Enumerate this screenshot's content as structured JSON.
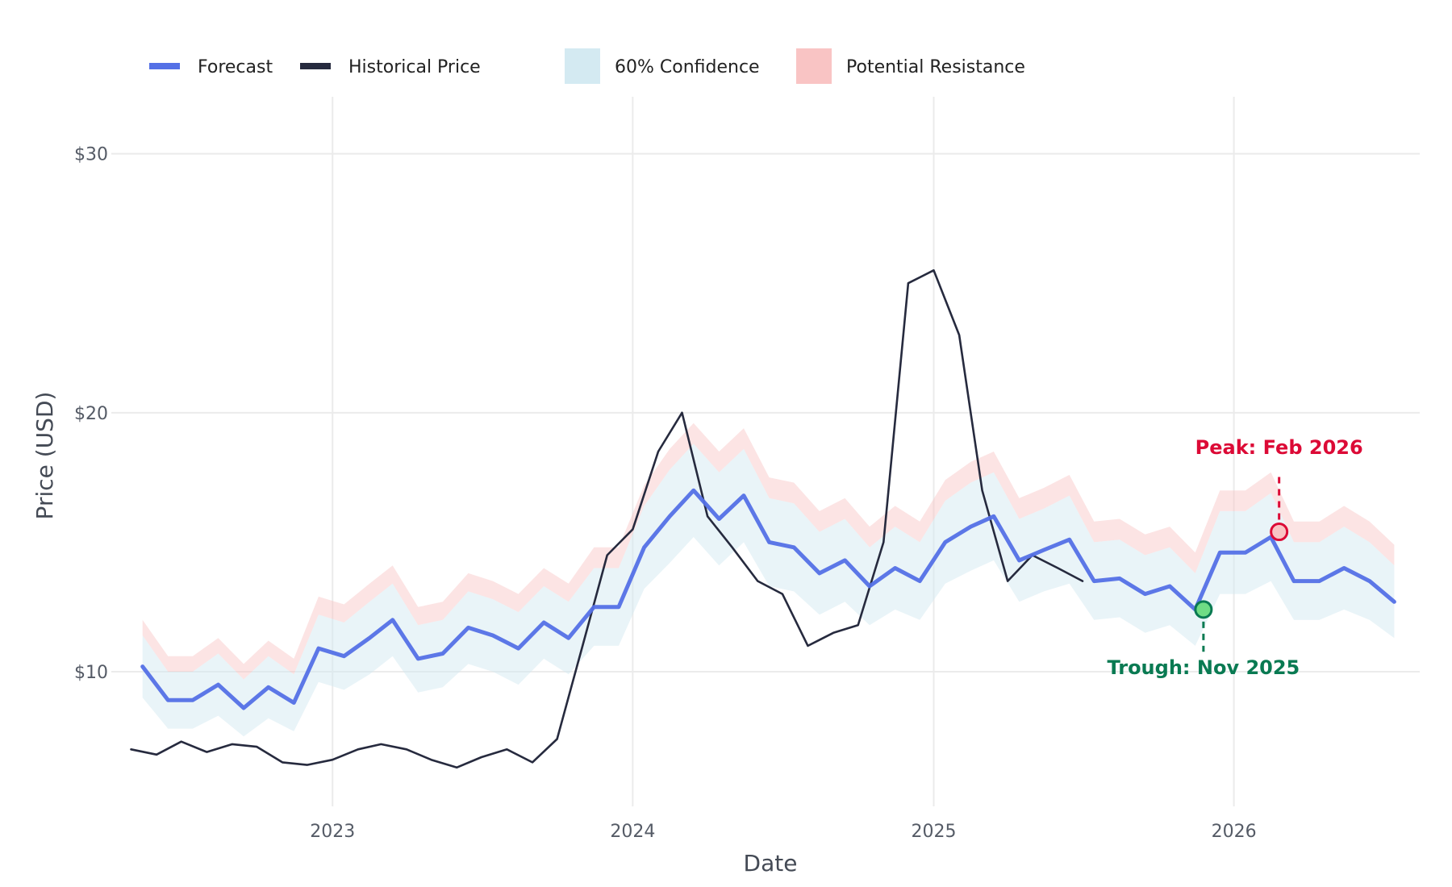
{
  "colors": {
    "forecast": "#5470e6",
    "historical": "#262a3e",
    "confidence": "#d4eaf2",
    "resistance": "#f9c4c4",
    "grid": "#ebebeb",
    "peak": "#dc0a36",
    "trough": "#097a52",
    "trough_fill": "#6fdc85"
  },
  "chart_data": {
    "type": "line",
    "xlabel": "Date",
    "ylabel": "Price (USD)",
    "xlim": [
      "2022-04-07",
      "2026-08-15"
    ],
    "ylim": [
      4.8,
      32.2
    ],
    "x_ticks": [
      {
        "date": "2023-01-01",
        "label": "2023"
      },
      {
        "date": "2024-01-01",
        "label": "2024"
      },
      {
        "date": "2025-01-01",
        "label": "2025"
      },
      {
        "date": "2026-01-01",
        "label": "2026"
      }
    ],
    "y_ticks": [
      {
        "value": 10,
        "label": "$10"
      },
      {
        "value": 20,
        "label": "$20"
      },
      {
        "value": 30,
        "label": "$30"
      }
    ],
    "grid": true,
    "legend": {
      "placement": "top-left",
      "items": [
        {
          "label": "Forecast",
          "kind": "line",
          "color": "#5470e6"
        },
        {
          "label": "Historical Price",
          "kind": "line",
          "color": "#262a3e"
        },
        {
          "label": "60% Confidence",
          "kind": "band",
          "color": "#d4eaf2"
        },
        {
          "label": "Potential Resistance",
          "kind": "band",
          "color": "#f9c4c4"
        }
      ]
    },
    "series": [
      {
        "name": "Historical Price",
        "x": [
          "2022-05-01",
          "2022-06-01",
          "2022-07-01",
          "2022-08-01",
          "2022-09-01",
          "2022-10-01",
          "2022-11-01",
          "2022-12-01",
          "2023-01-01",
          "2023-02-01",
          "2023-03-01",
          "2023-04-01",
          "2023-05-01",
          "2023-06-01",
          "2023-07-01",
          "2023-08-01",
          "2023-09-01",
          "2023-10-01",
          "2023-11-01",
          "2023-12-01",
          "2024-01-01",
          "2024-02-01",
          "2024-03-01",
          "2024-04-01",
          "2024-05-01",
          "2024-06-01",
          "2024-07-01",
          "2024-08-01",
          "2024-09-01",
          "2024-10-01",
          "2024-11-01",
          "2024-12-01",
          "2025-01-01",
          "2025-02-01",
          "2025-03-01",
          "2025-04-01",
          "2025-05-01",
          "2025-06-01",
          "2025-07-01"
        ],
        "y": [
          7.0,
          6.8,
          7.3,
          6.9,
          7.2,
          7.1,
          6.5,
          6.4,
          6.6,
          7.0,
          7.2,
          7.0,
          6.6,
          6.3,
          6.7,
          7.0,
          6.5,
          7.4,
          11.0,
          14.5,
          15.5,
          18.5,
          20.0,
          16.0,
          14.8,
          13.5,
          13.0,
          11.0,
          11.5,
          11.8,
          15.0,
          25.0,
          25.5,
          23.0,
          17.0,
          13.5,
          14.5,
          14.0,
          13.5
        ]
      },
      {
        "name": "Forecast",
        "x": [
          "2022-05-15",
          "2022-06-15",
          "2022-07-15",
          "2022-08-15",
          "2022-09-15",
          "2022-10-15",
          "2022-11-15",
          "2022-12-15",
          "2023-01-15",
          "2023-02-15",
          "2023-03-15",
          "2023-04-15",
          "2023-05-15",
          "2023-06-15",
          "2023-07-15",
          "2023-08-15",
          "2023-09-15",
          "2023-10-15",
          "2023-11-15",
          "2023-12-15",
          "2024-01-15",
          "2024-02-15",
          "2024-03-15",
          "2024-04-15",
          "2024-05-15",
          "2024-06-15",
          "2024-07-15",
          "2024-08-15",
          "2024-09-15",
          "2024-10-15",
          "2024-11-15",
          "2024-12-15",
          "2025-01-15",
          "2025-02-15",
          "2025-03-15",
          "2025-04-15",
          "2025-05-15",
          "2025-06-15",
          "2025-07-15",
          "2025-08-15",
          "2025-09-15",
          "2025-10-15",
          "2025-11-15",
          "2025-12-15",
          "2026-01-15",
          "2026-02-15",
          "2026-03-15",
          "2026-04-15",
          "2026-05-15",
          "2026-06-15",
          "2026-07-15"
        ],
        "y": [
          10.2,
          8.9,
          8.9,
          9.5,
          8.6,
          9.4,
          8.8,
          10.9,
          10.6,
          11.3,
          12.0,
          10.5,
          10.7,
          11.7,
          11.4,
          10.9,
          11.9,
          11.3,
          12.5,
          12.5,
          14.8,
          16.0,
          17.0,
          15.9,
          16.8,
          15.0,
          14.8,
          13.8,
          14.3,
          13.3,
          14.0,
          13.5,
          15.0,
          15.6,
          16.0,
          14.3,
          14.7,
          15.1,
          13.5,
          13.6,
          13.0,
          13.3,
          12.4,
          14.6,
          14.6,
          15.2,
          13.5,
          13.5,
          14.0,
          13.5,
          12.7
        ]
      }
    ],
    "confidence_band": {
      "label": "60% Confidence",
      "x": [
        "2022-05-15",
        "2022-06-15",
        "2022-07-15",
        "2022-08-15",
        "2022-09-15",
        "2022-10-15",
        "2022-11-15",
        "2022-12-15",
        "2023-01-15",
        "2023-02-15",
        "2023-03-15",
        "2023-04-15",
        "2023-05-15",
        "2023-06-15",
        "2023-07-15",
        "2023-08-15",
        "2023-09-15",
        "2023-10-15",
        "2023-11-15",
        "2023-12-15",
        "2024-01-15",
        "2024-02-15",
        "2024-03-15",
        "2024-04-15",
        "2024-05-15",
        "2024-06-15",
        "2024-07-15",
        "2024-08-15",
        "2024-09-15",
        "2024-10-15",
        "2024-11-15",
        "2024-12-15",
        "2025-01-15",
        "2025-02-15",
        "2025-03-15",
        "2025-04-15",
        "2025-05-15",
        "2025-06-15",
        "2025-07-15",
        "2025-08-15",
        "2025-09-15",
        "2025-10-15",
        "2025-11-15",
        "2025-12-15",
        "2026-01-15",
        "2026-02-15",
        "2026-03-15",
        "2026-04-15",
        "2026-05-15",
        "2026-06-15",
        "2026-07-15"
      ],
      "lower": [
        9.0,
        7.8,
        7.8,
        8.3,
        7.5,
        8.2,
        7.7,
        9.6,
        9.3,
        9.9,
        10.6,
        9.2,
        9.4,
        10.3,
        10.0,
        9.5,
        10.5,
        9.9,
        11.0,
        11.0,
        13.2,
        14.2,
        15.2,
        14.1,
        15.0,
        13.3,
        13.1,
        12.2,
        12.7,
        11.8,
        12.4,
        12.0,
        13.4,
        13.9,
        14.3,
        12.7,
        13.1,
        13.4,
        12.0,
        12.1,
        11.5,
        11.8,
        11.0,
        13.0,
        13.0,
        13.5,
        12.0,
        12.0,
        12.4,
        12.0,
        11.3
      ],
      "upper": [
        11.4,
        10.0,
        10.0,
        10.7,
        9.7,
        10.6,
        9.9,
        12.2,
        11.9,
        12.7,
        13.4,
        11.8,
        12.0,
        13.1,
        12.8,
        12.3,
        13.3,
        12.7,
        14.0,
        14.0,
        16.4,
        17.8,
        18.8,
        17.7,
        18.6,
        16.7,
        16.5,
        15.4,
        15.9,
        14.8,
        15.6,
        15.0,
        16.6,
        17.3,
        17.7,
        15.9,
        16.3,
        16.8,
        15.0,
        15.1,
        14.5,
        14.8,
        13.8,
        16.2,
        16.2,
        16.9,
        15.0,
        15.0,
        15.6,
        15.0,
        14.1
      ]
    },
    "resistance_band": {
      "label": "Potential Resistance",
      "x": [
        "2022-05-15",
        "2022-06-15",
        "2022-07-15",
        "2022-08-15",
        "2022-09-15",
        "2022-10-15",
        "2022-11-15",
        "2022-12-15",
        "2023-01-15",
        "2023-02-15",
        "2023-03-15",
        "2023-04-15",
        "2023-05-15",
        "2023-06-15",
        "2023-07-15",
        "2023-08-15",
        "2023-09-15",
        "2023-10-15",
        "2023-11-15",
        "2023-12-15",
        "2024-01-15",
        "2024-02-15",
        "2024-03-15",
        "2024-04-15",
        "2024-05-15",
        "2024-06-15",
        "2024-07-15",
        "2024-08-15",
        "2024-09-15",
        "2024-10-15",
        "2024-11-15",
        "2024-12-15",
        "2025-01-15",
        "2025-02-15",
        "2025-03-15",
        "2025-04-15",
        "2025-05-15",
        "2025-06-15",
        "2025-07-15",
        "2025-08-15",
        "2025-09-15",
        "2025-10-15",
        "2025-11-15",
        "2025-12-15",
        "2026-01-15",
        "2026-02-15",
        "2026-03-15",
        "2026-04-15",
        "2026-05-15",
        "2026-06-15",
        "2026-07-15"
      ],
      "upper": [
        12.0,
        10.6,
        10.6,
        11.3,
        10.3,
        11.2,
        10.5,
        12.9,
        12.6,
        13.4,
        14.1,
        12.5,
        12.7,
        13.8,
        13.5,
        13.0,
        14.0,
        13.4,
        14.8,
        14.8,
        17.2,
        18.6,
        19.6,
        18.5,
        19.4,
        17.5,
        17.3,
        16.2,
        16.7,
        15.6,
        16.4,
        15.8,
        17.4,
        18.1,
        18.5,
        16.7,
        17.1,
        17.6,
        15.8,
        15.9,
        15.3,
        15.6,
        14.6,
        17.0,
        17.0,
        17.7,
        15.8,
        15.8,
        16.4,
        15.8,
        14.9
      ]
    },
    "annotations": [
      {
        "label": "Peak: Feb 2026",
        "x": "2026-02-25",
        "y": 15.4,
        "kind": "peak",
        "label_y": 18.4
      },
      {
        "label": "Trough: Nov 2025",
        "x": "2025-11-25",
        "y": 12.4,
        "kind": "trough",
        "label_y": 9.9
      }
    ]
  }
}
